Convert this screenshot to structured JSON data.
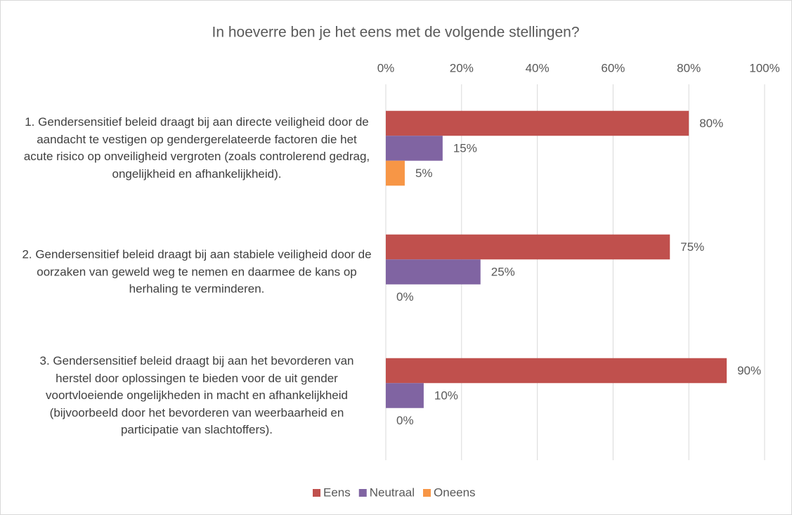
{
  "chart_data": {
    "type": "bar",
    "orientation": "horizontal",
    "title": "In hoeverre ben je het eens met de volgende stellingen?",
    "categories": [
      "1. Gendersensitief beleid draagt bij aan directe veiligheid door de aandacht te vestigen op gendergerelateerde factoren die het acute risico op onveiligheid vergroten  (zoals controlerend gedrag, ongelijkheid en afhankelijkheid).",
      "2. Gendersensitief beleid draagt bij aan stabiele veiligheid door de oorzaken van geweld weg te nemen en daarmee de kans op herhaling te verminderen.",
      "3. Gendersensitief beleid draagt bij aan het bevorderen van herstel door oplossingen te bieden voor de uit gender voortvloeiende ongelijkheden in macht en afhankelijkheid (bijvoorbeeld door het bevorderen van weerbaarheid en participatie van slachtoffers)."
    ],
    "series": [
      {
        "name": "Eens",
        "color": "#c0504d",
        "values": [
          80,
          75,
          90
        ],
        "value_labels": [
          "80%",
          "75%",
          "90%"
        ]
      },
      {
        "name": "Neutraal",
        "color": "#8064a2",
        "values": [
          15,
          25,
          10
        ],
        "value_labels": [
          "15%",
          "25%",
          "10%"
        ]
      },
      {
        "name": "Oneens",
        "color": "#f79646",
        "values": [
          5,
          0,
          0
        ],
        "value_labels": [
          "5%",
          "0%",
          "0%"
        ]
      }
    ],
    "xlim": [
      0,
      100
    ],
    "xticks": [
      {
        "value": 0,
        "label": "0%"
      },
      {
        "value": 20,
        "label": "20%"
      },
      {
        "value": 40,
        "label": "40%"
      },
      {
        "value": 60,
        "label": "60%"
      },
      {
        "value": 80,
        "label": "80%"
      },
      {
        "value": 100,
        "label": "100%"
      }
    ],
    "grid": true,
    "legend": "bottom"
  }
}
